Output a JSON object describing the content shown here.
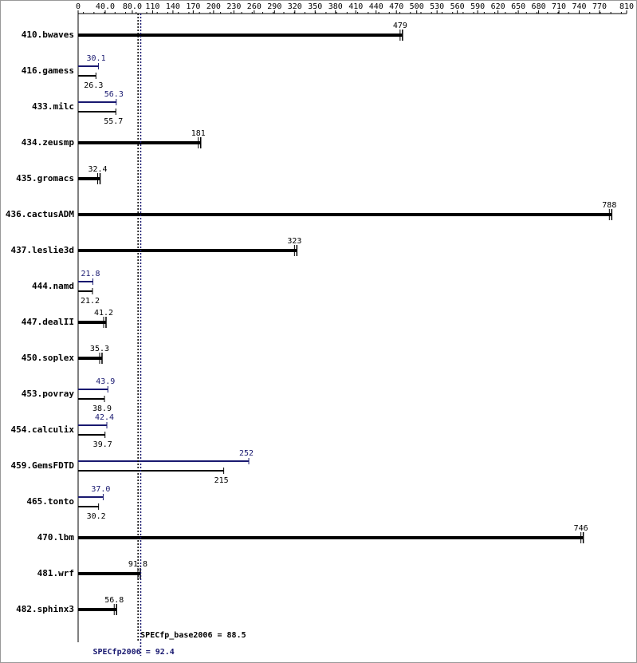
{
  "chart_data": {
    "type": "bar",
    "orientation": "horizontal",
    "categories": [
      "410.bwaves",
      "416.gamess",
      "433.milc",
      "434.zeusmp",
      "435.gromacs",
      "436.cactusADM",
      "437.leslie3d",
      "444.namd",
      "447.dealII",
      "450.soplex",
      "453.povray",
      "454.calculix",
      "459.GemsFDTD",
      "465.tonto",
      "470.lbm",
      "481.wrf",
      "482.sphinx3"
    ],
    "series": [
      {
        "color": "#000000",
        "values": [
          479,
          26.3,
          55.7,
          181,
          32.4,
          788,
          323,
          21.2,
          41.2,
          35.3,
          38.9,
          39.7,
          215,
          30.2,
          746,
          91.8,
          56.8
        ]
      },
      {
        "color": "#191970",
        "values": [
          null,
          30.1,
          56.3,
          null,
          null,
          null,
          null,
          21.8,
          null,
          null,
          43.9,
          42.4,
          252,
          37.0,
          null,
          null,
          null
        ],
        "value_labels": [
          null,
          "30.1",
          "56.3",
          null,
          null,
          null,
          null,
          "21.8",
          null,
          null,
          "43.9",
          "42.4",
          "252",
          "37.0",
          null,
          null,
          null
        ]
      }
    ],
    "xlim": [
      0,
      810
    ],
    "xticks": [
      0,
      {
        "value": 40,
        "label": "40.0"
      },
      {
        "value": 80,
        "label": "80.0"
      },
      110,
      140,
      170,
      200,
      230,
      260,
      290,
      320,
      350,
      380,
      410,
      440,
      470,
      500,
      530,
      560,
      590,
      620,
      650,
      680,
      710,
      740,
      770,
      810
    ],
    "reference_lines": [
      {
        "value": 88.5,
        "label": "SPECfp_base2006 = 88.5",
        "color": "#000000"
      },
      {
        "value": 92.4,
        "label": "SPECfp2006 = 92.4",
        "color": "#191970"
      }
    ]
  }
}
